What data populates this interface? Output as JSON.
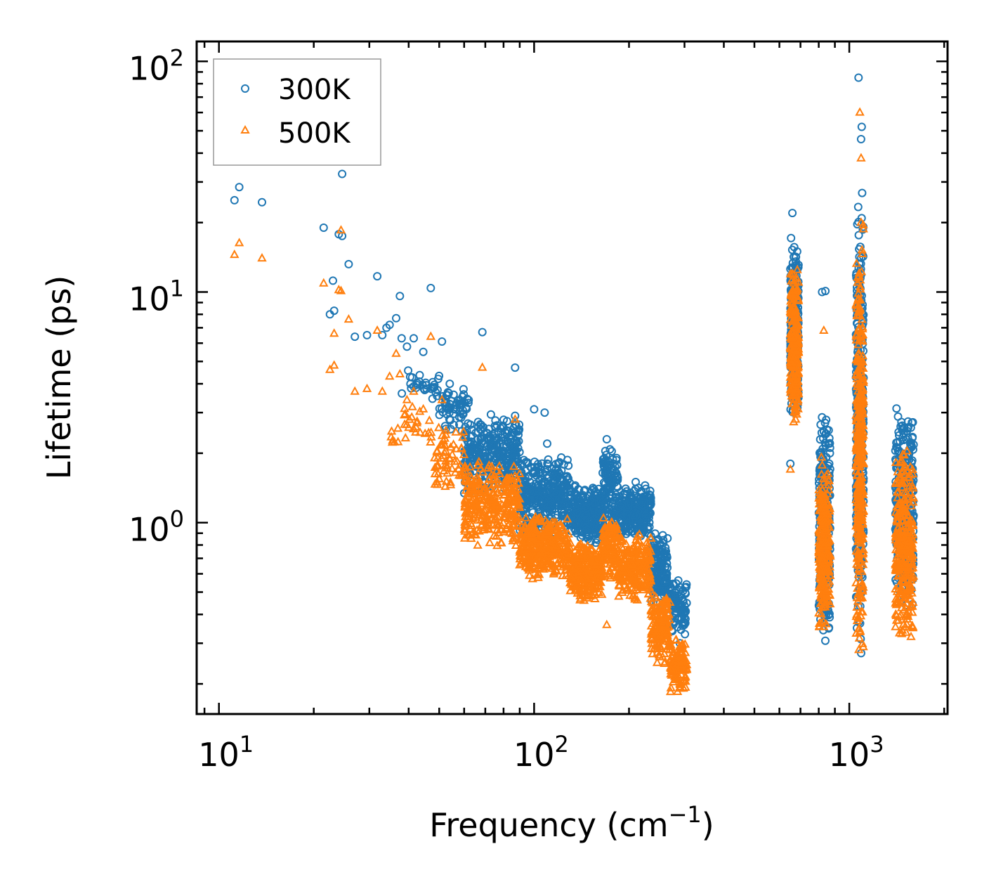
{
  "chart_data": {
    "type": "scatter",
    "title": "",
    "xlabel": "Frequency (cm",
    "xlabel_sup": "−1",
    "xlabel_end": ")",
    "ylabel": "Lifetime (ps)",
    "xscale": "log",
    "yscale": "log",
    "xlim": [
      8.5,
      2050
    ],
    "ylim": [
      0.148,
      122
    ],
    "xticks": [
      {
        "value": 10,
        "base": "10",
        "exp": "1"
      },
      {
        "value": 100,
        "base": "10",
        "exp": "2"
      },
      {
        "value": 1000,
        "base": "10",
        "exp": "3"
      }
    ],
    "yticks": [
      {
        "value": 1,
        "base": "10",
        "exp": "0"
      },
      {
        "value": 10,
        "base": "10",
        "exp": "1"
      },
      {
        "value": 100,
        "base": "10",
        "exp": "2"
      }
    ],
    "legend": {
      "location": "top-left",
      "entries": [
        {
          "name": "300K",
          "marker": "circle",
          "color": "#1f77b4"
        },
        {
          "name": "500K",
          "marker": "triangle",
          "color": "#ff7f0e"
        }
      ]
    },
    "series": [
      {
        "name": "300K",
        "marker": "circle",
        "color": "#1f77b4",
        "points": [
          [
            11.2,
            25.0
          ],
          [
            11.6,
            28.5
          ],
          [
            13.7,
            24.5
          ],
          [
            21.5,
            19.0
          ],
          [
            22.5,
            8.0
          ],
          [
            23.0,
            11.2
          ],
          [
            23.2,
            8.3
          ],
          [
            24.0,
            17.8
          ],
          [
            24.6,
            32.5
          ],
          [
            24.6,
            17.5
          ],
          [
            25.8,
            13.2
          ],
          [
            27.0,
            6.4
          ],
          [
            29.5,
            6.5
          ],
          [
            31.8,
            11.7
          ],
          [
            33.0,
            6.5
          ],
          [
            34.0,
            7.0
          ],
          [
            34.8,
            7.2
          ],
          [
            36.5,
            7.7
          ],
          [
            37.5,
            9.6
          ],
          [
            38.0,
            6.3
          ],
          [
            39.5,
            5.8
          ],
          [
            41.5,
            6.3
          ],
          [
            44.5,
            5.5
          ],
          [
            47.0,
            10.4
          ],
          [
            51.0,
            6.1
          ],
          [
            54.0,
            4.0
          ],
          [
            62.0,
            3.4
          ],
          [
            68.5,
            6.7
          ],
          [
            87.0,
            4.7
          ],
          [
            100.0,
            3.1
          ],
          [
            108.0,
            3.0
          ],
          [
            110.0,
            2.2
          ],
          [
            135.0,
            1.45
          ],
          [
            170.0,
            2.3
          ],
          [
            210.0,
            1.5
          ],
          [
            225.0,
            1.45
          ],
          [
            260.0,
            0.55
          ],
          [
            290.0,
            0.3
          ],
          [
            300.0,
            0.37
          ],
          [
            650.0,
            1.8
          ],
          [
            660.0,
            22.0
          ],
          [
            820.0,
            10.0
          ],
          [
            840.0,
            10.1
          ],
          [
            1070.0,
            85.0
          ],
          [
            1095.0,
            52.0
          ],
          [
            1090.0,
            46.0
          ]
        ],
        "bands": [
          {
            "x": [
              38,
              50
            ],
            "y": [
              3.2,
              5.0
            ],
            "n": 30
          },
          {
            "x": [
              50,
              62
            ],
            "y": [
              2.4,
              4.0
            ],
            "n": 60
          },
          {
            "x": [
              60,
              90
            ],
            "y": [
              1.3,
              3.0
            ],
            "n": 320
          },
          {
            "x": [
              90,
              130
            ],
            "y": [
              0.85,
              2.0
            ],
            "n": 340
          },
          {
            "x": [
              130,
              165
            ],
            "y": [
              0.8,
              1.45
            ],
            "n": 280
          },
          {
            "x": [
              165,
              185
            ],
            "y": [
              0.9,
              2.2
            ],
            "n": 120
          },
          {
            "x": [
              185,
              235
            ],
            "y": [
              0.85,
              1.45
            ],
            "n": 240
          },
          {
            "x": [
              235,
              265
            ],
            "y": [
              0.42,
              0.95
            ],
            "n": 140
          },
          {
            "x": [
              265,
              305
            ],
            "y": [
              0.32,
              0.58
            ],
            "n": 110
          },
          {
            "x": [
              650,
              690
            ],
            "y": [
              2.5,
              19.0
            ],
            "n": 260
          },
          {
            "x": [
              800,
              870
            ],
            "y": [
              0.3,
              3.0
            ],
            "n": 260
          },
          {
            "x": [
              1050,
              1110
            ],
            "y": [
              0.25,
              30.0
            ],
            "n": 340
          },
          {
            "x": [
              1400,
              1600
            ],
            "y": [
              0.42,
              3.2
            ],
            "n": 300
          }
        ]
      },
      {
        "name": "500K",
        "marker": "triangle",
        "color": "#ff7f0e",
        "points": [
          [
            11.2,
            14.5
          ],
          [
            11.6,
            16.3
          ],
          [
            13.7,
            14.0
          ],
          [
            21.5,
            10.9
          ],
          [
            22.5,
            4.6
          ],
          [
            23.2,
            6.6
          ],
          [
            23.2,
            4.8
          ],
          [
            24.0,
            10.2
          ],
          [
            24.4,
            18.5
          ],
          [
            24.4,
            10.1
          ],
          [
            25.8,
            7.6
          ],
          [
            27.0,
            3.7
          ],
          [
            29.5,
            3.8
          ],
          [
            31.8,
            6.8
          ],
          [
            33.0,
            3.7
          ],
          [
            34.8,
            4.3
          ],
          [
            36.5,
            5.4
          ],
          [
            37.5,
            4.4
          ],
          [
            39.5,
            3.4
          ],
          [
            41.5,
            3.7
          ],
          [
            44.5,
            3.1
          ],
          [
            47.0,
            6.4
          ],
          [
            51.0,
            3.4
          ],
          [
            68.5,
            4.7
          ],
          [
            87.0,
            2.8
          ],
          [
            140.0,
            0.48
          ],
          [
            170.0,
            0.36
          ],
          [
            290.0,
            0.2
          ],
          [
            650.0,
            1.7
          ],
          [
            660.0,
            12.0
          ],
          [
            830.0,
            6.8
          ],
          [
            1080.0,
            60.0
          ],
          [
            1090.0,
            38.0
          ],
          [
            1090.0,
            20.0
          ]
        ],
        "bands": [
          {
            "x": [
              35,
              48
            ],
            "y": [
              2.0,
              3.4
            ],
            "n": 30
          },
          {
            "x": [
              48,
              60
            ],
            "y": [
              1.3,
              2.7
            ],
            "n": 60
          },
          {
            "x": [
              60,
              90
            ],
            "y": [
              0.75,
              1.9
            ],
            "n": 320
          },
          {
            "x": [
              90,
              130
            ],
            "y": [
              0.55,
              1.1
            ],
            "n": 340
          },
          {
            "x": [
              130,
              165
            ],
            "y": [
              0.45,
              0.85
            ],
            "n": 280
          },
          {
            "x": [
              165,
              185
            ],
            "y": [
              0.55,
              1.1
            ],
            "n": 120
          },
          {
            "x": [
              185,
              235
            ],
            "y": [
              0.45,
              0.9
            ],
            "n": 240
          },
          {
            "x": [
              235,
              270
            ],
            "y": [
              0.24,
              0.5
            ],
            "n": 150
          },
          {
            "x": [
              270,
              305
            ],
            "y": [
              0.18,
              0.32
            ],
            "n": 110
          },
          {
            "x": [
              650,
              690
            ],
            "y": [
              2.6,
              13.0
            ],
            "n": 260
          },
          {
            "x": [
              800,
              870
            ],
            "y": [
              0.3,
              2.0
            ],
            "n": 260
          },
          {
            "x": [
              1050,
              1110
            ],
            "y": [
              0.22,
              20.0
            ],
            "n": 340
          },
          {
            "x": [
              1400,
              1600
            ],
            "y": [
              0.28,
              2.2
            ],
            "n": 300
          }
        ]
      }
    ]
  }
}
